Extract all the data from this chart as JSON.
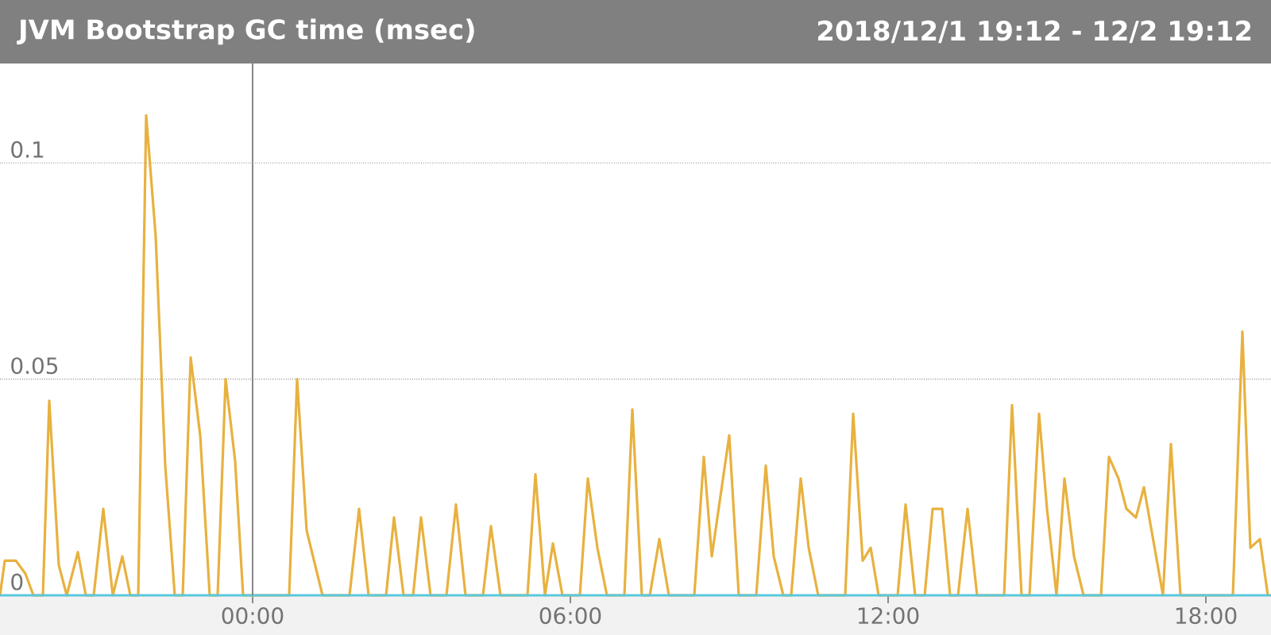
{
  "chart_data": {
    "type": "line",
    "title": "JVM Bootstrap GC time (msec)",
    "subtitle": "2018/12/1 19:12 - 12/2 19:12",
    "x": [
      -4.77,
      -4.68,
      -4.47,
      -4.29,
      -4.14,
      -3.96,
      -3.84,
      -3.66,
      -3.51,
      -3.3,
      -3.15,
      -3.0,
      -2.82,
      -2.64,
      -2.46,
      -2.31,
      -2.16,
      -2.01,
      -1.83,
      -1.65,
      -1.47,
      -1.32,
      -1.17,
      -0.99,
      -0.81,
      -0.66,
      -0.51,
      -0.33,
      -0.18,
      0.69,
      0.84,
      1.02,
      1.32,
      1.83,
      2.01,
      2.19,
      2.52,
      2.67,
      2.85,
      3.03,
      3.18,
      3.36,
      3.66,
      3.84,
      4.02,
      4.35,
      4.5,
      4.68,
      5.19,
      5.34,
      5.52,
      5.67,
      5.85,
      6.18,
      6.33,
      6.51,
      6.69,
      7.02,
      7.17,
      7.35,
      7.5,
      7.68,
      7.86,
      8.34,
      8.52,
      8.67,
      9.0,
      9.18,
      9.51,
      9.69,
      9.84,
      10.02,
      10.17,
      10.35,
      10.5,
      10.68,
      11.19,
      11.34,
      11.52,
      11.67,
      11.82,
      12.18,
      12.33,
      12.51,
      12.69,
      12.84,
      13.02,
      13.17,
      13.32,
      13.5,
      13.68,
      14.19,
      14.34,
      14.52,
      14.67,
      14.85,
      15.0,
      15.18,
      15.33,
      15.51,
      15.69,
      16.02,
      16.17,
      16.35,
      16.5,
      16.68,
      16.83,
      17.19,
      17.34,
      17.52,
      18.51,
      18.69,
      18.84,
      19.02,
      19.17
    ],
    "series": [
      {
        "color": "#e8b13f",
        "values": [
          0,
          0.008,
          0.008,
          0.005,
          0,
          0,
          0.045,
          0.007,
          0,
          0.01,
          0,
          0,
          0.02,
          0,
          0.009,
          0,
          0,
          0.111,
          0.083,
          0.03,
          0,
          0,
          0.055,
          0.037,
          0,
          0,
          0.05,
          0.031,
          0,
          0,
          0.05,
          0.015,
          0,
          0,
          0.02,
          0,
          0,
          0.018,
          0,
          0,
          0.018,
          0,
          0,
          0.021,
          0,
          0,
          0.016,
          0,
          0,
          0.028,
          0,
          0.012,
          0,
          0,
          0.027,
          0.011,
          0,
          0,
          0.043,
          0,
          0,
          0.013,
          0,
          0,
          0.032,
          0.009,
          0.037,
          0,
          0,
          0.03,
          0.009,
          0,
          0,
          0.027,
          0.011,
          0,
          0,
          0.042,
          0.008,
          0.011,
          0,
          0,
          0.021,
          0,
          0,
          0.02,
          0.02,
          0,
          0,
          0.02,
          0,
          0,
          0.044,
          0,
          0,
          0.042,
          0.02,
          0,
          0.027,
          0.009,
          0,
          0,
          0.032,
          0.027,
          0.02,
          0.018,
          0.025,
          0,
          0.035,
          0,
          0,
          0.061,
          0.011,
          0.013,
          0
        ]
      },
      {
        "color": "#5bc8dc",
        "x": [
          -4.77,
          19.23
        ],
        "values": [
          0,
          0
        ]
      }
    ],
    "xlim": [
      -4.77,
      19.23
    ],
    "ylim": [
      0,
      0.123
    ],
    "xticks": [
      {
        "value": 0,
        "label": "00:00"
      },
      {
        "value": 6,
        "label": "06:00"
      },
      {
        "value": 12,
        "label": "12:00"
      },
      {
        "value": 18,
        "label": "18:00"
      }
    ],
    "yticks": [
      0,
      0.05,
      0.1
    ],
    "grid": "y",
    "ref_lines": [
      {
        "axis": "x",
        "value": 0,
        "color": "#888888"
      }
    ]
  }
}
